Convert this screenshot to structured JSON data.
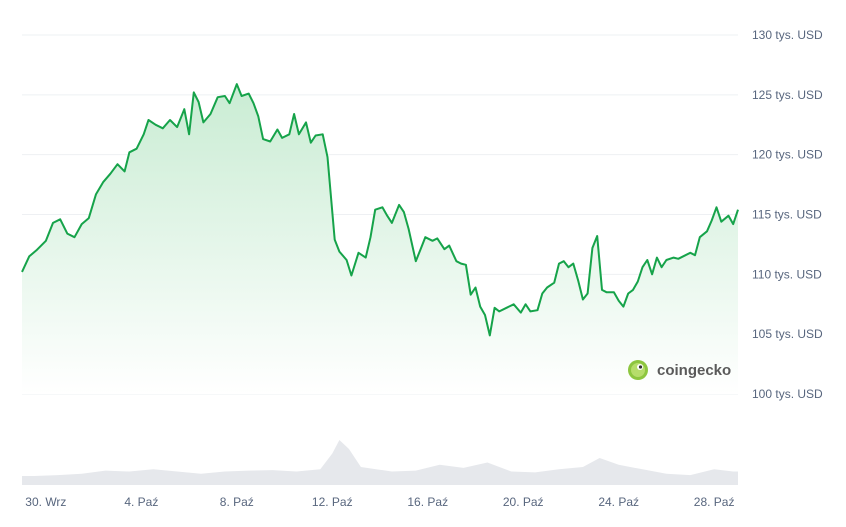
{
  "watermark": {
    "label": "coingecko",
    "icon": "coingecko-gecko-icon"
  },
  "colors": {
    "line": "#16a34a",
    "area_top": "#c9ecd3",
    "area_bottom": "#ffffff",
    "grid": "#eef0f3",
    "volume": "#e6e8ec",
    "text": "#58667e"
  },
  "chart_data": {
    "type": "area",
    "title": "",
    "xlabel": "",
    "ylabel": "",
    "grid": true,
    "ylim": [
      100,
      130
    ],
    "y_ticks": [
      {
        "value": 130,
        "label": "130 tys. USD"
      },
      {
        "value": 125,
        "label": "125 tys. USD"
      },
      {
        "value": 120,
        "label": "120 tys. USD"
      },
      {
        "value": 115,
        "label": "115 tys. USD"
      },
      {
        "value": 110,
        "label": "110 tys. USD"
      },
      {
        "value": 105,
        "label": "105 tys. USD"
      },
      {
        "value": 100,
        "label": "100 tys. USD"
      }
    ],
    "xlim": [
      0,
      30
    ],
    "x_ticks": [
      {
        "day": 1,
        "label": "30. Wrz"
      },
      {
        "day": 5,
        "label": "4. Paź"
      },
      {
        "day": 9,
        "label": "8. Paź"
      },
      {
        "day": 13,
        "label": "12. Paź"
      },
      {
        "day": 17,
        "label": "16. Paź"
      },
      {
        "day": 21,
        "label": "20. Paź"
      },
      {
        "day": 25,
        "label": "24. Paź"
      },
      {
        "day": 29,
        "label": "28. Paź"
      }
    ],
    "series": [
      {
        "unit": "tys. USD",
        "points": [
          [
            0.0,
            110.2
          ],
          [
            0.3,
            111.5
          ],
          [
            0.6,
            112.0
          ],
          [
            1.0,
            112.8
          ],
          [
            1.3,
            114.3
          ],
          [
            1.6,
            114.6
          ],
          [
            1.9,
            113.4
          ],
          [
            2.2,
            113.1
          ],
          [
            2.5,
            114.2
          ],
          [
            2.8,
            114.7
          ],
          [
            3.1,
            116.7
          ],
          [
            3.4,
            117.7
          ],
          [
            3.7,
            118.4
          ],
          [
            4.0,
            119.2
          ],
          [
            4.3,
            118.6
          ],
          [
            4.5,
            120.2
          ],
          [
            4.8,
            120.5
          ],
          [
            5.1,
            121.7
          ],
          [
            5.3,
            122.9
          ],
          [
            5.6,
            122.5
          ],
          [
            5.9,
            122.2
          ],
          [
            6.2,
            122.9
          ],
          [
            6.5,
            122.3
          ],
          [
            6.8,
            123.8
          ],
          [
            7.0,
            121.7
          ],
          [
            7.2,
            125.2
          ],
          [
            7.4,
            124.4
          ],
          [
            7.6,
            122.7
          ],
          [
            7.9,
            123.4
          ],
          [
            8.2,
            124.8
          ],
          [
            8.5,
            124.9
          ],
          [
            8.7,
            124.3
          ],
          [
            9.0,
            125.9
          ],
          [
            9.2,
            124.9
          ],
          [
            9.5,
            125.1
          ],
          [
            9.7,
            124.3
          ],
          [
            9.9,
            123.2
          ],
          [
            10.1,
            121.3
          ],
          [
            10.4,
            121.1
          ],
          [
            10.7,
            122.1
          ],
          [
            10.9,
            121.4
          ],
          [
            11.2,
            121.7
          ],
          [
            11.4,
            123.4
          ],
          [
            11.6,
            121.7
          ],
          [
            11.9,
            122.7
          ],
          [
            12.1,
            121.0
          ],
          [
            12.3,
            121.6
          ],
          [
            12.6,
            121.7
          ],
          [
            12.8,
            119.8
          ],
          [
            13.1,
            112.9
          ],
          [
            13.3,
            111.9
          ],
          [
            13.6,
            111.2
          ],
          [
            13.8,
            109.9
          ],
          [
            14.1,
            111.8
          ],
          [
            14.4,
            111.4
          ],
          [
            14.6,
            113.1
          ],
          [
            14.8,
            115.4
          ],
          [
            15.1,
            115.6
          ],
          [
            15.3,
            114.9
          ],
          [
            15.5,
            114.3
          ],
          [
            15.8,
            115.8
          ],
          [
            16.0,
            115.2
          ],
          [
            16.2,
            113.8
          ],
          [
            16.5,
            111.1
          ],
          [
            16.7,
            112.1
          ],
          [
            16.9,
            113.1
          ],
          [
            17.2,
            112.8
          ],
          [
            17.4,
            113.0
          ],
          [
            17.7,
            112.1
          ],
          [
            17.9,
            112.4
          ],
          [
            18.2,
            111.1
          ],
          [
            18.4,
            110.9
          ],
          [
            18.6,
            110.8
          ],
          [
            18.8,
            108.3
          ],
          [
            19.0,
            108.9
          ],
          [
            19.2,
            107.3
          ],
          [
            19.4,
            106.6
          ],
          [
            19.6,
            104.9
          ],
          [
            19.8,
            107.2
          ],
          [
            20.0,
            106.9
          ],
          [
            20.3,
            107.2
          ],
          [
            20.6,
            107.5
          ],
          [
            20.9,
            106.8
          ],
          [
            21.1,
            107.5
          ],
          [
            21.3,
            106.9
          ],
          [
            21.6,
            107.0
          ],
          [
            21.8,
            108.4
          ],
          [
            22.0,
            108.9
          ],
          [
            22.3,
            109.3
          ],
          [
            22.5,
            110.9
          ],
          [
            22.7,
            111.1
          ],
          [
            22.9,
            110.6
          ],
          [
            23.1,
            110.9
          ],
          [
            23.3,
            109.5
          ],
          [
            23.5,
            107.9
          ],
          [
            23.7,
            108.4
          ],
          [
            23.9,
            112.2
          ],
          [
            24.1,
            113.2
          ],
          [
            24.3,
            108.7
          ],
          [
            24.5,
            108.5
          ],
          [
            24.8,
            108.5
          ],
          [
            25.0,
            107.8
          ],
          [
            25.2,
            107.3
          ],
          [
            25.4,
            108.4
          ],
          [
            25.6,
            108.7
          ],
          [
            25.8,
            109.4
          ],
          [
            26.0,
            110.6
          ],
          [
            26.2,
            111.2
          ],
          [
            26.4,
            110.0
          ],
          [
            26.6,
            111.4
          ],
          [
            26.8,
            110.6
          ],
          [
            27.0,
            111.2
          ],
          [
            27.3,
            111.4
          ],
          [
            27.5,
            111.3
          ],
          [
            27.8,
            111.6
          ],
          [
            28.0,
            111.8
          ],
          [
            28.2,
            111.6
          ],
          [
            28.4,
            113.1
          ],
          [
            28.7,
            113.6
          ],
          [
            28.9,
            114.5
          ],
          [
            29.1,
            115.6
          ],
          [
            29.3,
            114.4
          ],
          [
            29.6,
            114.9
          ],
          [
            29.8,
            114.2
          ],
          [
            30.0,
            115.4
          ]
        ]
      }
    ],
    "volume": [
      {
        "day": 0.5,
        "v": 0.2
      },
      {
        "day": 1.5,
        "v": 0.22
      },
      {
        "day": 2.5,
        "v": 0.25
      },
      {
        "day": 3.5,
        "v": 0.32
      },
      {
        "day": 4.5,
        "v": 0.3
      },
      {
        "day": 5.5,
        "v": 0.35
      },
      {
        "day": 6.5,
        "v": 0.3
      },
      {
        "day": 7.5,
        "v": 0.25
      },
      {
        "day": 8.5,
        "v": 0.3
      },
      {
        "day": 9.5,
        "v": 0.32
      },
      {
        "day": 10.5,
        "v": 0.33
      },
      {
        "day": 11.5,
        "v": 0.3
      },
      {
        "day": 12.5,
        "v": 0.35
      },
      {
        "day": 13.0,
        "v": 0.7
      },
      {
        "day": 13.3,
        "v": 1.0
      },
      {
        "day": 13.7,
        "v": 0.8
      },
      {
        "day": 14.2,
        "v": 0.4
      },
      {
        "day": 15.5,
        "v": 0.3
      },
      {
        "day": 16.5,
        "v": 0.32
      },
      {
        "day": 17.5,
        "v": 0.45
      },
      {
        "day": 18.5,
        "v": 0.38
      },
      {
        "day": 19.5,
        "v": 0.5
      },
      {
        "day": 20.5,
        "v": 0.3
      },
      {
        "day": 21.5,
        "v": 0.28
      },
      {
        "day": 22.5,
        "v": 0.35
      },
      {
        "day": 23.5,
        "v": 0.4
      },
      {
        "day": 24.2,
        "v": 0.6
      },
      {
        "day": 25.0,
        "v": 0.45
      },
      {
        "day": 26.0,
        "v": 0.35
      },
      {
        "day": 27.0,
        "v": 0.25
      },
      {
        "day": 28.0,
        "v": 0.22
      },
      {
        "day": 29.0,
        "v": 0.35
      },
      {
        "day": 29.8,
        "v": 0.3
      }
    ]
  }
}
